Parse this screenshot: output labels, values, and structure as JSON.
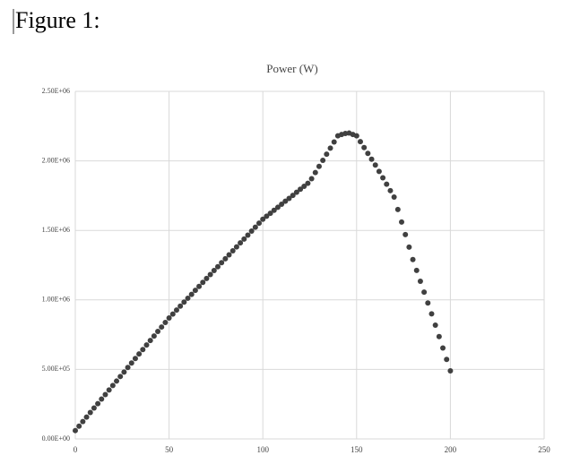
{
  "document": {
    "heading": "Figure 1:"
  },
  "chart_data": {
    "type": "scatter",
    "title": "Power (W)",
    "x": [
      0,
      2,
      4,
      6,
      8,
      10,
      12,
      14,
      16,
      18,
      20,
      22,
      24,
      26,
      28,
      30,
      32,
      34,
      36,
      38,
      40,
      42,
      44,
      46,
      48,
      50,
      52,
      54,
      56,
      58,
      60,
      62,
      64,
      66,
      68,
      70,
      72,
      74,
      76,
      78,
      80,
      82,
      84,
      86,
      88,
      90,
      92,
      94,
      96,
      98,
      100,
      102,
      104,
      106,
      108,
      110,
      112,
      114,
      116,
      118,
      120,
      122,
      124,
      126,
      128,
      130,
      132,
      134,
      136,
      138,
      140,
      142,
      144,
      146,
      148,
      150,
      152,
      154,
      156,
      158,
      160,
      162,
      164,
      166,
      168,
      170,
      172,
      174,
      176,
      178,
      180,
      182,
      184,
      186,
      188,
      190,
      192,
      194,
      196,
      198,
      200
    ],
    "values": [
      60000,
      92000,
      125000,
      157000,
      190000,
      222000,
      254000,
      287000,
      319000,
      352000,
      384000,
      416000,
      449000,
      481000,
      514000,
      546000,
      578000,
      611000,
      643000,
      676000,
      708000,
      740000,
      773000,
      805000,
      838000,
      870000,
      898000,
      927000,
      955000,
      984000,
      1012000,
      1040000,
      1069000,
      1097000,
      1126000,
      1154000,
      1182000,
      1211000,
      1239000,
      1268000,
      1296000,
      1324000,
      1353000,
      1381000,
      1410000,
      1438000,
      1466000,
      1495000,
      1523000,
      1552000,
      1580000,
      1602000,
      1623000,
      1645000,
      1666000,
      1688000,
      1710000,
      1730000,
      1752000,
      1774000,
      1796000,
      1817000,
      1839000,
      1872000,
      1916000,
      1960000,
      2004000,
      2048000,
      2092000,
      2136000,
      2180000,
      2190000,
      2197000,
      2200000,
      2190000,
      2180000,
      2138000,
      2096000,
      2054000,
      2012000,
      1970000,
      1924000,
      1878000,
      1832000,
      1786000,
      1740000,
      1650000,
      1560000,
      1470000,
      1380000,
      1290000,
      1212000,
      1134000,
      1056000,
      978000,
      900000,
      818000,
      736000,
      654000,
      572000,
      490000
    ],
    "color": "#404040",
    "xlim": [
      0,
      250
    ],
    "xticks": [
      0,
      50,
      100,
      150,
      200,
      250
    ],
    "ylim": [
      0,
      2500000
    ],
    "yticks": [
      {
        "value": 0,
        "label": "0.00E+00"
      },
      {
        "value": 500000,
        "label": "5.00E+05"
      },
      {
        "value": 1000000,
        "label": "1.00E+06"
      },
      {
        "value": 1500000,
        "label": "1.50E+06"
      },
      {
        "value": 2000000,
        "label": "2.00E+06"
      },
      {
        "value": 2500000,
        "label": "2.50E+06"
      }
    ],
    "grid": true
  }
}
